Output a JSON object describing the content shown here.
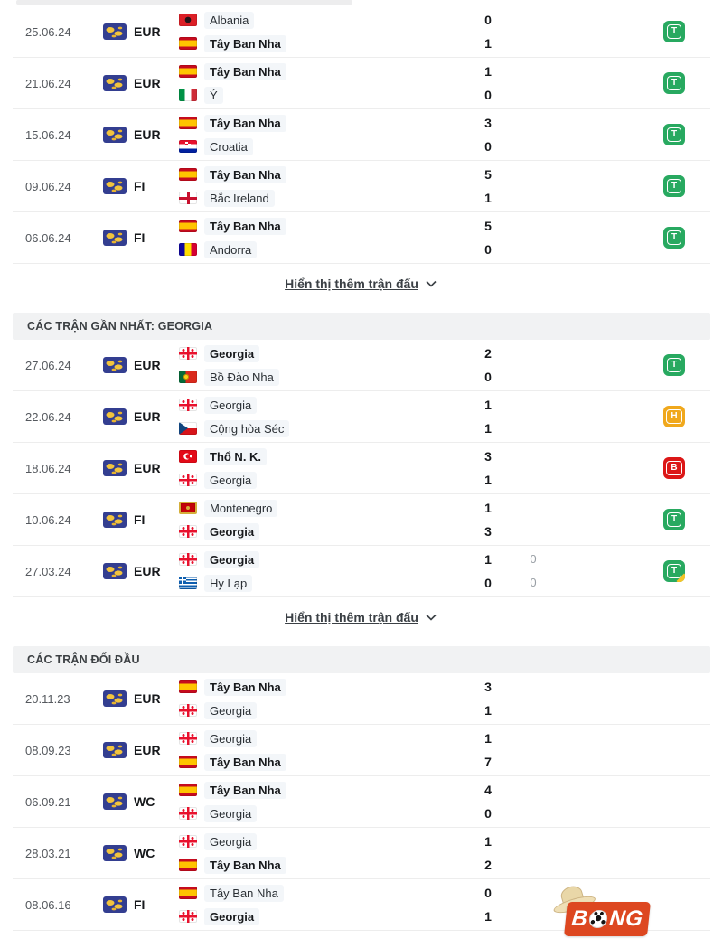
{
  "more_link_label": "Hiển thị thêm trận đấu",
  "result_colors": {
    "T": "#28a960",
    "H": "#f0a81c",
    "B": "#dc1717"
  },
  "highlight_bg": "#f3f6f9",
  "sections": [
    {
      "header": null,
      "show_more": true,
      "matches": [
        {
          "date": "25.06.24",
          "comp": "EUR",
          "home": {
            "name": "Albania",
            "flag": "albania",
            "bold": false,
            "score": "0"
          },
          "away": {
            "name": "Tây Ban Nha",
            "flag": "spain",
            "bold": true,
            "score": "1"
          },
          "result": {
            "letter": "T",
            "corner": false
          }
        },
        {
          "date": "21.06.24",
          "comp": "EUR",
          "home": {
            "name": "Tây Ban Nha",
            "flag": "spain",
            "bold": true,
            "score": "1"
          },
          "away": {
            "name": "Ý",
            "flag": "italy",
            "bold": false,
            "score": "0"
          },
          "result": {
            "letter": "T",
            "corner": false
          }
        },
        {
          "date": "15.06.24",
          "comp": "EUR",
          "home": {
            "name": "Tây Ban Nha",
            "flag": "spain",
            "bold": true,
            "score": "3"
          },
          "away": {
            "name": "Croatia",
            "flag": "croatia",
            "bold": false,
            "score": "0"
          },
          "result": {
            "letter": "T",
            "corner": false
          }
        },
        {
          "date": "09.06.24",
          "comp": "FI",
          "home": {
            "name": "Tây Ban Nha",
            "flag": "spain",
            "bold": true,
            "score": "5"
          },
          "away": {
            "name": "Bắc Ireland",
            "flag": "nireland",
            "bold": false,
            "score": "1"
          },
          "result": {
            "letter": "T",
            "corner": false
          }
        },
        {
          "date": "06.06.24",
          "comp": "FI",
          "home": {
            "name": "Tây Ban Nha",
            "flag": "spain",
            "bold": true,
            "score": "5"
          },
          "away": {
            "name": "Andorra",
            "flag": "andorra",
            "bold": false,
            "score": "0"
          },
          "result": {
            "letter": "T",
            "corner": false
          }
        }
      ]
    },
    {
      "header": "CÁC TRẬN GẦN NHẤT: GEORGIA",
      "show_more": true,
      "matches": [
        {
          "date": "27.06.24",
          "comp": "EUR",
          "home": {
            "name": "Georgia",
            "flag": "georgia",
            "bold": true,
            "score": "2"
          },
          "away": {
            "name": "Bồ Đào Nha",
            "flag": "portugal",
            "bold": false,
            "score": "0"
          },
          "result": {
            "letter": "T",
            "corner": false
          }
        },
        {
          "date": "22.06.24",
          "comp": "EUR",
          "home": {
            "name": "Georgia",
            "flag": "georgia",
            "bold": false,
            "score": "1"
          },
          "away": {
            "name": "Cộng hòa Séc",
            "flag": "czech",
            "bold": false,
            "score": "1"
          },
          "result": {
            "letter": "H",
            "corner": false
          }
        },
        {
          "date": "18.06.24",
          "comp": "EUR",
          "home": {
            "name": "Thổ N. K.",
            "flag": "turkey",
            "bold": true,
            "score": "3"
          },
          "away": {
            "name": "Georgia",
            "flag": "georgia",
            "bold": false,
            "score": "1"
          },
          "result": {
            "letter": "B",
            "corner": false
          }
        },
        {
          "date": "10.06.24",
          "comp": "FI",
          "home": {
            "name": "Montenegro",
            "flag": "montenegro",
            "bold": false,
            "score": "1"
          },
          "away": {
            "name": "Georgia",
            "flag": "georgia",
            "bold": true,
            "score": "3"
          },
          "result": {
            "letter": "T",
            "corner": false
          }
        },
        {
          "date": "27.03.24",
          "comp": "EUR",
          "home": {
            "name": "Georgia",
            "flag": "georgia",
            "bold": true,
            "score": "1",
            "pen": "0"
          },
          "away": {
            "name": "Hy Lạp",
            "flag": "greece",
            "bold": false,
            "score": "0",
            "pen": "0"
          },
          "result": {
            "letter": "T",
            "corner": true
          }
        }
      ]
    },
    {
      "header": "CÁC TRẬN ĐỐI ĐẦU",
      "show_more": false,
      "matches": [
        {
          "date": "20.11.23",
          "comp": "EUR",
          "home": {
            "name": "Tây Ban Nha",
            "flag": "spain",
            "bold": true,
            "score": "3"
          },
          "away": {
            "name": "Georgia",
            "flag": "georgia",
            "bold": false,
            "score": "1"
          },
          "result": null
        },
        {
          "date": "08.09.23",
          "comp": "EUR",
          "home": {
            "name": "Georgia",
            "flag": "georgia",
            "bold": false,
            "score": "1"
          },
          "away": {
            "name": "Tây Ban Nha",
            "flag": "spain",
            "bold": true,
            "score": "7"
          },
          "result": null
        },
        {
          "date": "06.09.21",
          "comp": "WC",
          "home": {
            "name": "Tây Ban Nha",
            "flag": "spain",
            "bold": true,
            "score": "4"
          },
          "away": {
            "name": "Georgia",
            "flag": "georgia",
            "bold": false,
            "score": "0"
          },
          "result": null
        },
        {
          "date": "28.03.21",
          "comp": "WC",
          "home": {
            "name": "Georgia",
            "flag": "georgia",
            "bold": false,
            "score": "1"
          },
          "away": {
            "name": "Tây Ban Nha",
            "flag": "spain",
            "bold": true,
            "score": "2"
          },
          "result": null
        },
        {
          "date": "08.06.16",
          "comp": "FI",
          "home": {
            "name": "Tây Ban Nha",
            "flag": "spain",
            "bold": false,
            "score": "0"
          },
          "away": {
            "name": "Georgia",
            "flag": "georgia",
            "bold": true,
            "score": "1"
          },
          "result": null
        }
      ]
    }
  ],
  "watermark": {
    "text_left": "B",
    "text_right": "NG"
  }
}
